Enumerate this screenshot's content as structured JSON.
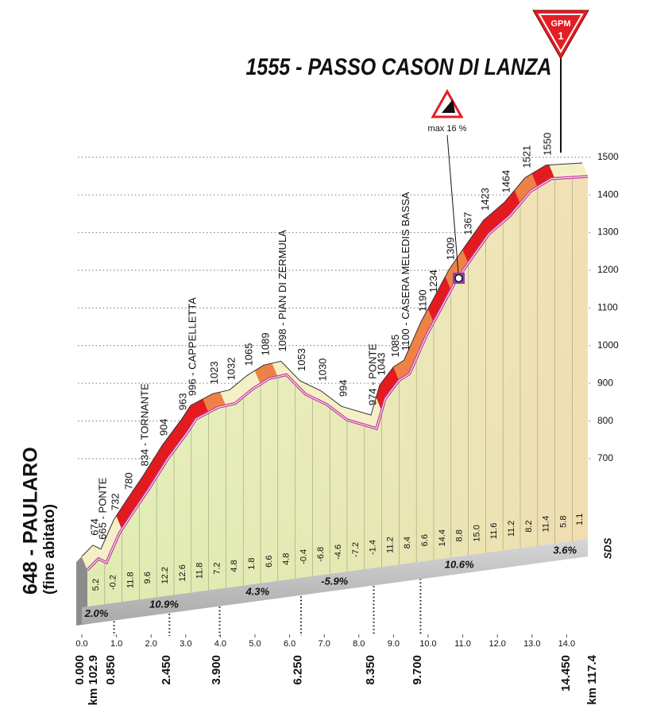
{
  "chart_data": {
    "type": "elevation-profile",
    "x": [
      0,
      0.32,
      0.55,
      0.92,
      1.31,
      1.77,
      2.32,
      2.87,
      3.14,
      3.78,
      4.27,
      4.77,
      5.25,
      5.75,
      6.3,
      6.9,
      7.5,
      8.35,
      8.6,
      9.0,
      9.3,
      9.8,
      10.1,
      10.6,
      11.1,
      11.6,
      12.2,
      12.8,
      13.4,
      14.45
    ],
    "values": [
      648,
      674,
      665,
      732,
      780,
      834,
      904,
      963,
      996,
      1023,
      1032,
      1065,
      1089,
      1098,
      1053,
      1030,
      994,
      974,
      1043,
      1085,
      1100,
      1190,
      1234,
      1309,
      1367,
      1423,
      1464,
      1521,
      1550,
      1555
    ],
    "value_labels": [
      "648 - PAULARO",
      "674",
      "665 - PONTE",
      "732",
      "780",
      "834 - TORNANTE",
      "904",
      "963",
      "996 - CAPPELLETTA",
      "1023",
      "1032",
      "1065",
      "1089",
      "1098 - PIAN DI ZERMULA",
      "1053",
      "1030",
      "994",
      "974 - PONTE",
      "1043",
      "1085",
      "1100 - CASERA MELEDIS BASSA",
      "1190",
      "1234",
      "1309",
      "1367",
      "1423",
      "1464",
      "1521",
      "1550",
      "1555 - PASSO CASON DI LANZA"
    ],
    "start_note": "(fine abitato)",
    "gpm_label": "GPM",
    "gpm_rank": "1",
    "max_gradient_label": "max 16 %",
    "logo": "SDS",
    "segments": {
      "values": [
        5.2,
        -0.2,
        11.8,
        9.6,
        12.2,
        12.6,
        11.8,
        7.2,
        4.8,
        1.8,
        6.6,
        4.8,
        -0.4,
        -6.8,
        -4.6,
        -7.2,
        -1.4,
        11.2,
        8.4,
        6.6,
        14.4,
        8.8,
        15.0,
        11.6,
        11.2,
        8.2,
        11.4,
        5.8,
        1.1
      ],
      "value_labels": [
        "5.2",
        "-0.2",
        "11.8",
        "9.6",
        "12.2",
        "12.6",
        "11.8",
        "7.2",
        "4.8",
        "1.8",
        "6.6",
        "4.8",
        "-0.4",
        "-6.8",
        "-4.6",
        "-7.2",
        "-1.4",
        "11.2",
        "8.4",
        "6.6",
        "14.4",
        "8.8",
        "15.0",
        "11.6",
        "11.2",
        "8.2",
        "11.4",
        "5.8",
        "1.1"
      ]
    },
    "sections": {
      "from": [
        0,
        0.85,
        3.9,
        6.25,
        8.35,
        13.45
      ],
      "to": [
        0.85,
        3.9,
        6.25,
        8.35,
        13.45,
        14.45
      ],
      "values": [
        2.0,
        10.9,
        4.3,
        -5.9,
        10.6,
        3.6
      ],
      "value_labels": [
        "2.0%",
        "10.9%",
        "4.3%",
        "-5.9%",
        "10.6%",
        "3.6%"
      ]
    },
    "km_marks": [
      {
        "value": 0,
        "label": "0.000"
      },
      {
        "value": 0.85,
        "label": "0.850"
      },
      {
        "value": 2.45,
        "label": "2.450"
      },
      {
        "value": 3.9,
        "label": "3.900"
      },
      {
        "value": 6.25,
        "label": "6.250"
      },
      {
        "value": 8.35,
        "label": "8.350"
      },
      {
        "value": 9.7,
        "label": "9.700"
      },
      {
        "value": 14.45,
        "label": "14.450"
      }
    ],
    "start_race_km": "km 102.9",
    "finish_race_km": "km 117.4",
    "xlim": [
      0,
      14.45
    ],
    "xticks": [
      {
        "value": 0,
        "label": "0.0"
      },
      {
        "value": 1,
        "label": "1.0"
      },
      {
        "value": 2,
        "label": "2.0"
      },
      {
        "value": 3,
        "label": "3.0"
      },
      {
        "value": 4,
        "label": "4.0"
      },
      {
        "value": 5,
        "label": "5.0"
      },
      {
        "value": 6,
        "label": "6.0"
      },
      {
        "value": 7,
        "label": "7.0"
      },
      {
        "value": 8,
        "label": "8.0"
      },
      {
        "value": 9,
        "label": "9.0"
      },
      {
        "value": 10,
        "label": "10.0"
      },
      {
        "value": 11,
        "label": "11.0"
      },
      {
        "value": 12,
        "label": "12.0"
      },
      {
        "value": 13,
        "label": "13.0"
      },
      {
        "value": 14,
        "label": "14.0"
      }
    ],
    "ylim": [
      600,
      1540
    ],
    "yticks": [
      700,
      800,
      900,
      1000,
      1100,
      1200,
      1300,
      1400,
      1500
    ],
    "grid": true
  }
}
